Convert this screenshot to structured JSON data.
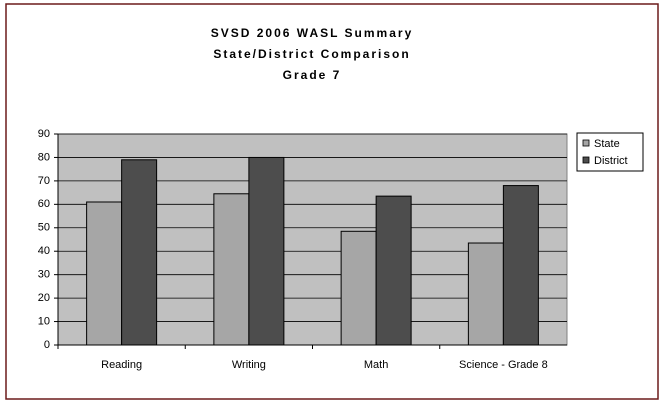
{
  "chart_data": {
    "type": "bar",
    "title": [
      "SVSD 2006 WASL Summary",
      "State/District Comparison",
      "Grade 7"
    ],
    "categories": [
      "Reading",
      "Writing",
      "Math",
      "Science - Grade 8"
    ],
    "series": [
      {
        "name": "State",
        "color": "#a6a6a6",
        "values": [
          61,
          64.5,
          48.5,
          43.5
        ]
      },
      {
        "name": "District",
        "color": "#4d4d4d",
        "values": [
          79,
          80,
          63.5,
          68
        ]
      }
    ],
    "ylim": [
      0,
      90
    ],
    "yticks": [
      0,
      10,
      20,
      30,
      40,
      50,
      60,
      70,
      80,
      90
    ],
    "grid": true,
    "legend": "right"
  }
}
